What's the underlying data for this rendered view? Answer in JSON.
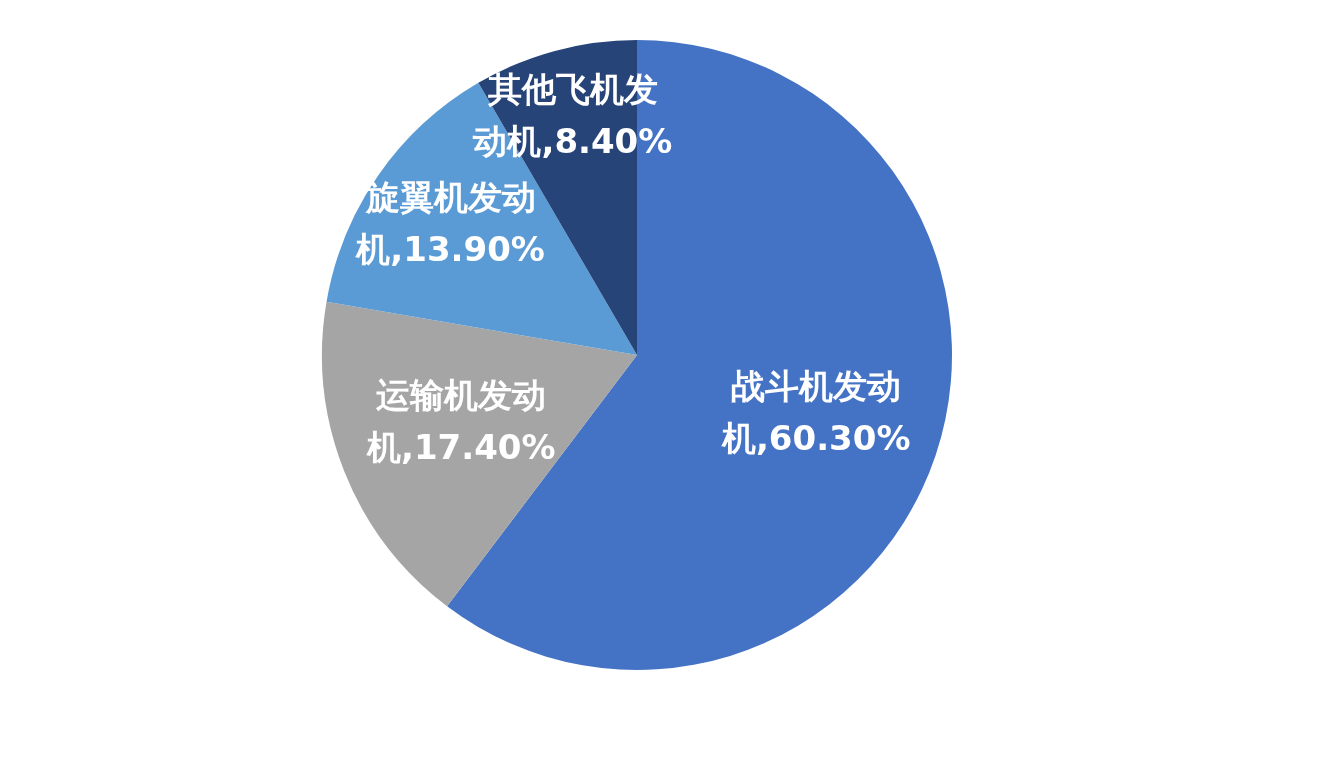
{
  "chart_data": {
    "type": "pie",
    "categories": [
      "战斗机发动机",
      "运输机发动机",
      "旋翼机发动机",
      "其他飞机发动机"
    ],
    "values": [
      60.3,
      17.4,
      13.9,
      8.4
    ],
    "colors": [
      "#4472c4",
      "#a5a5a5",
      "#5b9bd5",
      "#264478"
    ],
    "value_labels": [
      "60.30%",
      "17.40%",
      "13.90%",
      "8.40%"
    ],
    "legend": false
  }
}
